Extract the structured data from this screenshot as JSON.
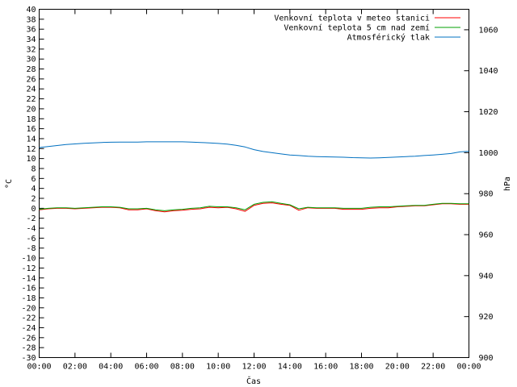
{
  "chart_data": {
    "type": "line",
    "xlabel": "Čas",
    "ylabel_left": "°C",
    "ylabel_right": "hPa",
    "ylim_left": [
      -30,
      40
    ],
    "ylim_right": [
      900,
      1070
    ],
    "left_ticks": [
      40,
      38,
      36,
      34,
      32,
      30,
      28,
      26,
      24,
      22,
      20,
      18,
      16,
      14,
      12,
      10,
      8,
      6,
      4,
      2,
      0,
      -2,
      -4,
      -6,
      -8,
      -10,
      -12,
      -14,
      -16,
      -18,
      -20,
      -22,
      -24,
      -26,
      -28,
      -30
    ],
    "right_ticks": [
      1060,
      1040,
      1020,
      1000,
      980,
      960,
      940,
      920,
      900
    ],
    "x_tick_labels": [
      "00:00",
      "02:00",
      "04:00",
      "06:00",
      "08:00",
      "10:00",
      "12:00",
      "14:00",
      "16:00",
      "18:00",
      "20:00",
      "22:00",
      "00:00"
    ],
    "x_hours": [
      0,
      0.5,
      1,
      1.5,
      2,
      2.5,
      3,
      3.5,
      4,
      4.5,
      5,
      5.5,
      6,
      6.5,
      7,
      7.5,
      8,
      8.5,
      9,
      9.5,
      10,
      10.5,
      11,
      11.5,
      12,
      12.5,
      13,
      13.5,
      14,
      14.5,
      15,
      15.5,
      16,
      16.5,
      17,
      17.5,
      18,
      18.5,
      19,
      19.5,
      20,
      20.5,
      21,
      21.5,
      22,
      22.5,
      23,
      23.5,
      24
    ],
    "legend_position": "top-right",
    "series": [
      {
        "name": "Venkovní teplota v meteo stanici",
        "color": "#ff0000",
        "axis": "left",
        "values": [
          -0.3,
          -0.1,
          0.0,
          0.0,
          -0.1,
          0.0,
          0.1,
          0.2,
          0.2,
          0.1,
          -0.3,
          -0.3,
          -0.1,
          -0.5,
          -0.7,
          -0.5,
          -0.4,
          -0.2,
          -0.1,
          0.2,
          0.1,
          0.2,
          -0.1,
          -0.6,
          0.6,
          1.0,
          1.1,
          0.8,
          0.6,
          -0.4,
          0.1,
          0.0,
          0.0,
          0.0,
          -0.2,
          -0.2,
          -0.2,
          0.0,
          0.1,
          0.1,
          0.3,
          0.4,
          0.5,
          0.5,
          0.7,
          0.9,
          0.9,
          0.8,
          0.8
        ]
      },
      {
        "name": "Venkovní teplota 5 cm nad zemí",
        "color": "#00a000",
        "axis": "left",
        "values": [
          -0.2,
          0.0,
          0.1,
          0.1,
          0.0,
          0.1,
          0.2,
          0.3,
          0.3,
          0.2,
          -0.1,
          -0.1,
          0.0,
          -0.3,
          -0.5,
          -0.3,
          -0.2,
          0.0,
          0.1,
          0.4,
          0.3,
          0.3,
          0.1,
          -0.3,
          0.8,
          1.2,
          1.3,
          1.0,
          0.7,
          -0.1,
          0.2,
          0.1,
          0.1,
          0.1,
          0.0,
          0.0,
          0.0,
          0.2,
          0.3,
          0.3,
          0.4,
          0.5,
          0.6,
          0.6,
          0.8,
          1.0,
          1.0,
          0.9,
          0.9
        ]
      },
      {
        "name": "Atmosférický tlak",
        "color": "#0070c0",
        "axis": "right",
        "values": [
          1002.5,
          1003.0,
          1003.5,
          1004.0,
          1004.3,
          1004.6,
          1004.8,
          1005.0,
          1005.1,
          1005.2,
          1005.2,
          1005.2,
          1005.3,
          1005.3,
          1005.3,
          1005.3,
          1005.3,
          1005.2,
          1005.0,
          1004.8,
          1004.5,
          1004.2,
          1003.6,
          1002.8,
          1001.5,
          1000.6,
          1000.0,
          999.4,
          998.9,
          998.6,
          998.3,
          998.1,
          998.0,
          997.9,
          997.8,
          997.6,
          997.5,
          997.4,
          997.5,
          997.7,
          997.9,
          998.1,
          998.3,
          998.6,
          998.9,
          999.2,
          999.6,
          1000.4,
          1000.7
        ]
      }
    ]
  }
}
